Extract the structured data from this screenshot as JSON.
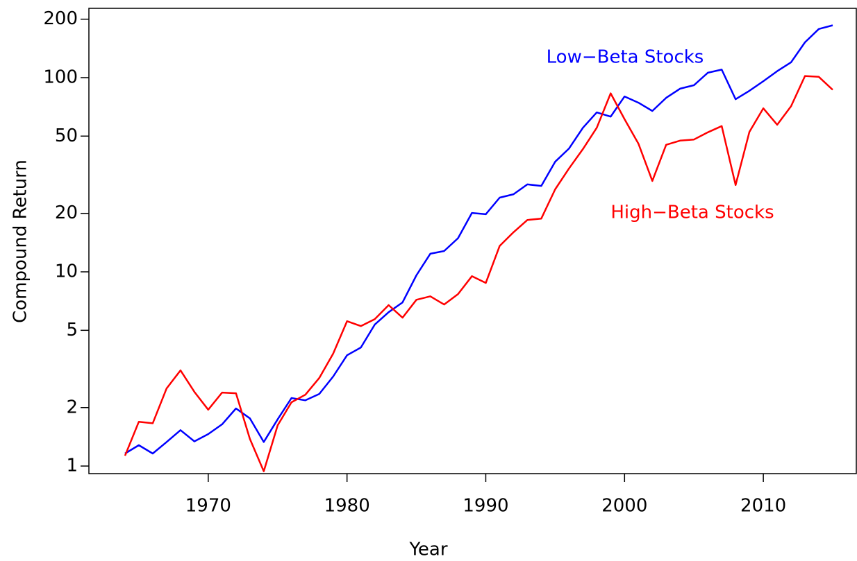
{
  "chart_data": {
    "type": "line",
    "x_label": "Year",
    "y_label": "Compound Return",
    "x": [
      1964,
      1965,
      1966,
      1967,
      1968,
      1969,
      1970,
      1971,
      1972,
      1973,
      1974,
      1975,
      1976,
      1977,
      1978,
      1979,
      1980,
      1981,
      1982,
      1983,
      1984,
      1985,
      1986,
      1987,
      1988,
      1989,
      1990,
      1991,
      1992,
      1993,
      1994,
      1995,
      1996,
      1997,
      1998,
      1999,
      2000,
      2001,
      2002,
      2003,
      2004,
      2005,
      2006,
      2007,
      2008,
      2009,
      2010,
      2011,
      2012,
      2013,
      2014,
      2015
    ],
    "series": [
      {
        "name": "Low−Beta Stocks",
        "color": "#0000ff",
        "values": [
          1.16,
          1.28,
          1.16,
          1.33,
          1.53,
          1.34,
          1.46,
          1.64,
          1.98,
          1.76,
          1.33,
          1.74,
          2.24,
          2.18,
          2.35,
          2.89,
          3.72,
          4.08,
          5.35,
          6.2,
          6.96,
          9.6,
          12.4,
          12.8,
          14.9,
          20.1,
          19.8,
          24.1,
          25.1,
          28.2,
          27.7,
          36.9,
          43.2,
          55.2,
          66.2,
          63.0,
          80.0,
          74.3,
          67.4,
          78.7,
          87.7,
          91.4,
          106,
          110,
          77.4,
          85.6,
          95.9,
          108,
          120,
          152,
          178,
          186
        ]
      },
      {
        "name": "High−Beta Stocks",
        "color": "#ff0000",
        "values": [
          1.13,
          1.69,
          1.66,
          2.51,
          3.11,
          2.41,
          1.95,
          2.39,
          2.37,
          1.38,
          0.94,
          1.62,
          2.13,
          2.33,
          2.84,
          3.79,
          5.57,
          5.26,
          5.71,
          6.74,
          5.81,
          7.18,
          7.48,
          6.79,
          7.68,
          9.5,
          8.77,
          13.6,
          16.0,
          18.5,
          18.8,
          26.6,
          34.1,
          42.9,
          55.2,
          83.0,
          61.1,
          45.7,
          29.4,
          45.1,
          47.4,
          48.0,
          52.3,
          56.3,
          28.0,
          52.6,
          69.5,
          57.2,
          71.3,
          102,
          101,
          86.6
        ]
      }
    ],
    "xlim": [
      1961.4,
      2016.7
    ],
    "xticks": [
      1970,
      1980,
      1990,
      2000,
      2010
    ],
    "ylim": [
      0.914,
      227.5
    ],
    "yticks": [
      1,
      2,
      5,
      10,
      20,
      50,
      100,
      200
    ],
    "log_y": true
  }
}
